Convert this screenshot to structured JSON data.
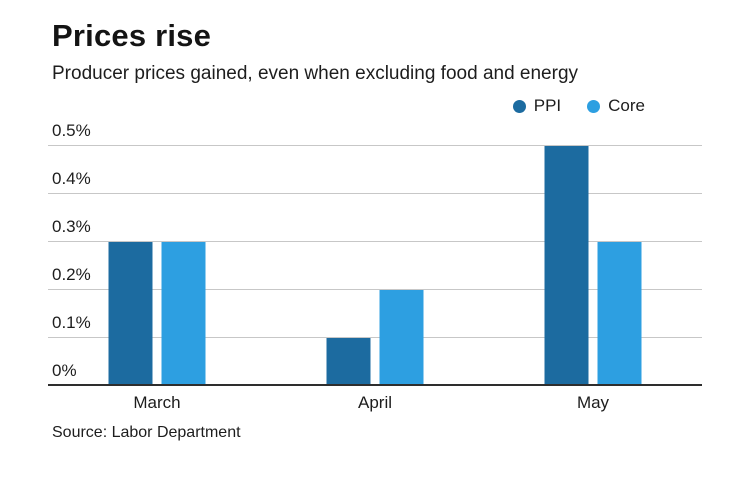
{
  "header": {
    "title": "Prices rise",
    "subtitle": "Producer prices gained, even when excluding food and energy"
  },
  "legend": [
    {
      "label": "PPI",
      "color": "#1c6ba0"
    },
    {
      "label": "Core",
      "color": "#2d9fe1"
    }
  ],
  "source": "Source: Labor Department",
  "chart_data": {
    "type": "bar",
    "title": "Prices rise",
    "subtitle": "Producer prices gained, even when excluding food and energy",
    "categories": [
      "March",
      "April",
      "May"
    ],
    "series": [
      {
        "name": "PPI",
        "color": "#1c6ba0",
        "values": [
          0.3,
          0.1,
          0.5
        ]
      },
      {
        "name": "Core",
        "color": "#2d9fe1",
        "values": [
          0.3,
          0.2,
          0.3
        ]
      }
    ],
    "xlabel": "",
    "ylabel": "",
    "ylim": [
      0,
      0.5
    ],
    "yticks": [
      0,
      0.1,
      0.2,
      0.3,
      0.4,
      0.5
    ],
    "ytick_labels": [
      "0%",
      "0.1%",
      "0.2%",
      "0.3%",
      "0.4%",
      "0.5%"
    ],
    "grid": true,
    "legend_position": "top-right",
    "source": "Source: Labor Department"
  }
}
